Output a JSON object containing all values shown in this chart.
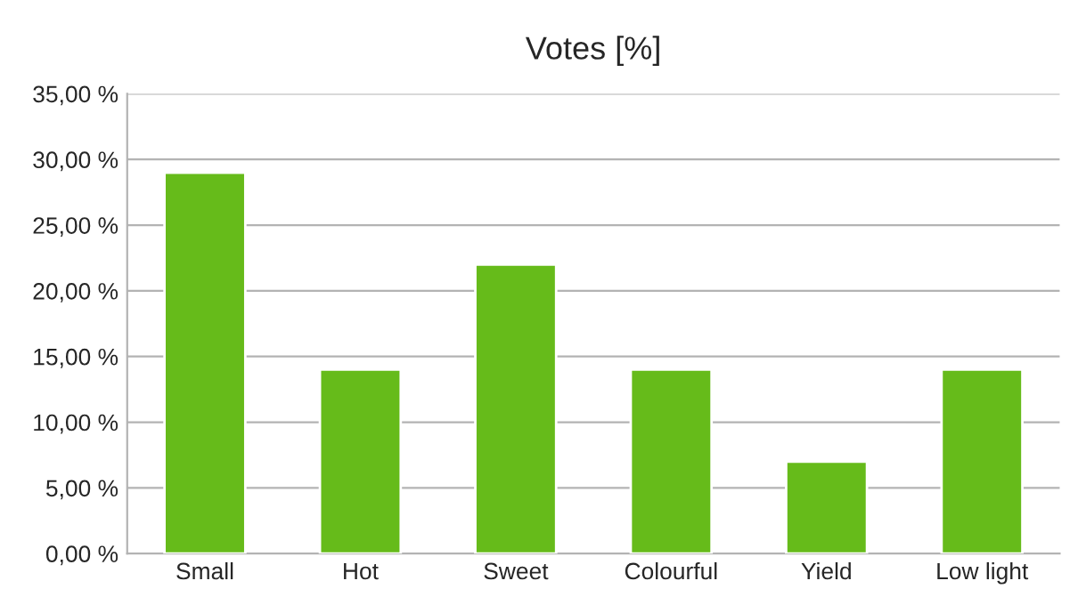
{
  "chart_data": {
    "type": "bar",
    "title": "Votes [%]",
    "categories": [
      "Small",
      "Hot",
      "Sweet",
      "Colourful",
      "Yield",
      "Low light"
    ],
    "values": [
      29,
      14,
      22,
      14,
      7,
      14
    ],
    "color": "#66bb1a",
    "ylim": [
      0,
      35
    ],
    "yticks": [
      {
        "value": 0,
        "label": "0,00 %"
      },
      {
        "value": 5,
        "label": "5,00 %"
      },
      {
        "value": 10,
        "label": "10,00 %"
      },
      {
        "value": 15,
        "label": "15,00 %"
      },
      {
        "value": 20,
        "label": "20,00 %"
      },
      {
        "value": 25,
        "label": "25,00 %"
      },
      {
        "value": 30,
        "label": "30,00 %"
      },
      {
        "value": 35,
        "label": "35,00 %"
      }
    ],
    "grid": "y",
    "legend": false
  }
}
